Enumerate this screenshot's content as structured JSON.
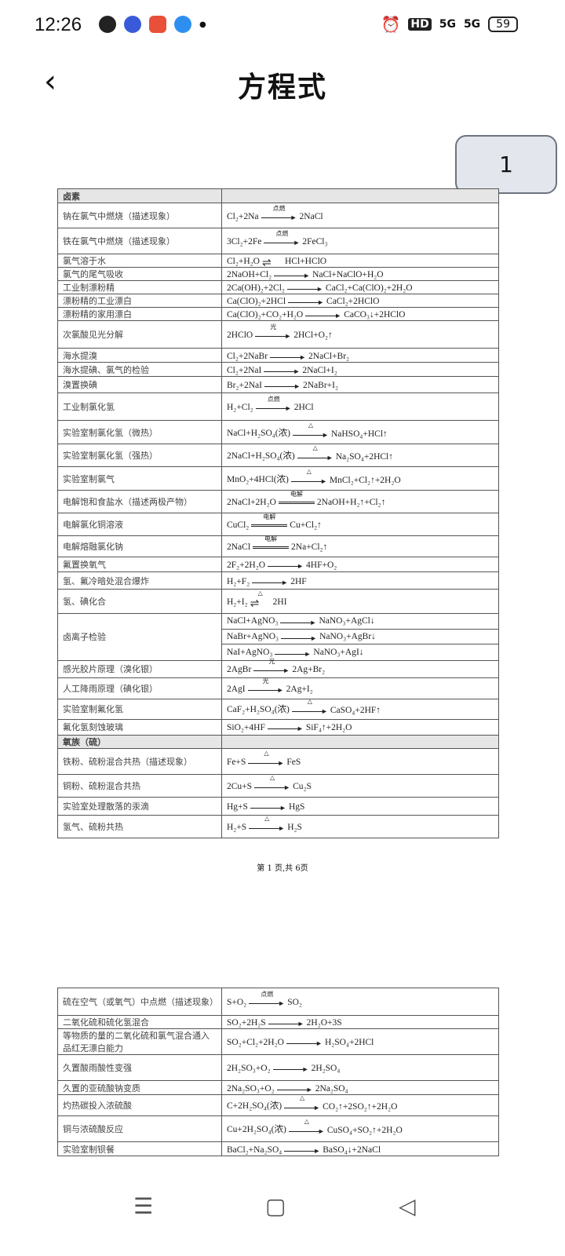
{
  "status": {
    "time": "12:26",
    "hd": "HD",
    "net1": "5G",
    "net2": "5G",
    "battery": "59"
  },
  "header": {
    "title": "方程式",
    "back_icon": "chevron-left-icon"
  },
  "page_badge": "1",
  "colors": {
    "section_bg": "#e6e6e6",
    "badge_bg": "#e3e7ed"
  },
  "page1": [
    {
      "sec": "卤素"
    },
    {
      "l": "钠在氯气中燃烧（描述现象）",
      "eq": [
        {
          "lhs": "Cl₂+2Na",
          "arrow": "single",
          "cond": "点燃",
          "rhs": "2NaCl"
        }
      ]
    },
    {
      "l": "铁在氯气中燃烧（描述现象）",
      "eq": [
        {
          "lhs": "3Cl₂+2Fe",
          "arrow": "single",
          "cond": "点燃",
          "rhs": "2FeCl₃"
        }
      ]
    },
    {
      "l": "氯气溶于水",
      "eq": [
        {
          "lhs": "Cl₂+H₂O",
          "arrow": "reversible",
          "cond": "",
          "rhs": "HCl+HClO"
        }
      ]
    },
    {
      "l": "氯气的尾气吸收",
      "eq": [
        {
          "lhs": "2NaOH+Cl₂",
          "arrow": "single",
          "cond": "",
          "rhs": "NaCl+NaClO+H₂O"
        }
      ]
    },
    {
      "l": "工业制漂粉精",
      "eq": [
        {
          "lhs": "2Ca(OH)₂+2Cl₂",
          "arrow": "single",
          "cond": "",
          "rhs": "CaCl₂+Ca(ClO)₂+2H₂O"
        }
      ]
    },
    {
      "l": "漂粉精的工业漂白",
      "eq": [
        {
          "lhs": "Ca(ClO)₂+2HCl",
          "arrow": "single",
          "cond": "",
          "rhs": "CaCl₂+2HClO"
        }
      ]
    },
    {
      "l": "漂粉精的家用漂白",
      "eq": [
        {
          "lhs": "Ca(ClO)₂+CO₂+H₂O",
          "arrow": "single",
          "cond": "",
          "rhs": "CaCO₃↓+2HClO"
        }
      ]
    },
    {
      "l": "次氯酸见光分解",
      "eq": [
        {
          "lhs": "2HClO",
          "arrow": "single",
          "cond": "光",
          "rhs": "2HCl+O₂↑"
        }
      ]
    },
    {
      "l": "海水提溴",
      "eq": [
        {
          "lhs": "Cl₂+2NaBr",
          "arrow": "single",
          "cond": "",
          "rhs": "2NaCl+Br₂"
        }
      ]
    },
    {
      "l": "海水提碘、氯气的检验",
      "eq": [
        {
          "lhs": "Cl₂+2NaI",
          "arrow": "single",
          "cond": "",
          "rhs": "2NaCl+I₂"
        }
      ]
    },
    {
      "l": "溴置换碘",
      "eq": [
        {
          "lhs": "Br₂+2NaI",
          "arrow": "single",
          "cond": "",
          "rhs": "2NaBr+I₂"
        }
      ]
    },
    {
      "l": "工业制氯化氢",
      "eq": [
        {
          "lhs": "H₂+Cl₂",
          "arrow": "single",
          "cond": "点燃",
          "rhs": "2HCl"
        }
      ]
    },
    {
      "l": "实验室制氯化氢（微热）",
      "eq": [
        {
          "lhs": "NaCl+H₂SO₄(浓)",
          "arrow": "single",
          "cond": "△",
          "rhs": "NaHSO₄+HCl↑"
        }
      ]
    },
    {
      "l": "实验室制氯化氢（强热）",
      "eq": [
        {
          "lhs": "2NaCl+H₂SO₄(浓)",
          "arrow": "single",
          "cond": "△",
          "rhs": "Na₂SO₄+2HCl↑"
        }
      ]
    },
    {
      "l": "实验室制氯气",
      "eq": [
        {
          "lhs": "MnO₂+4HCl(浓)",
          "arrow": "single",
          "cond": "△",
          "rhs": "MnCl₂+Cl₂↑+2H₂O"
        }
      ]
    },
    {
      "l": "电解饱和食盐水（描述两极产物）",
      "eq": [
        {
          "lhs": "2NaCl+2H₂O",
          "arrow": "equal",
          "cond": "电解",
          "rhs": "2NaOH+H₂↑+Cl₂↑"
        }
      ]
    },
    {
      "l": "电解氯化铜溶液",
      "eq": [
        {
          "lhs": "CuCl₂",
          "arrow": "equal",
          "cond": "电解",
          "rhs": "Cu+Cl₂↑"
        }
      ]
    },
    {
      "l": "电解熔融氯化钠",
      "eq": [
        {
          "lhs": "2NaCl",
          "arrow": "equal",
          "cond": "电解",
          "rhs": "2Na+Cl₂↑"
        }
      ]
    },
    {
      "l": "氟置换氧气",
      "eq": [
        {
          "lhs": "2F₂+2H₂O",
          "arrow": "single",
          "cond": "",
          "rhs": "4HF+O₂"
        }
      ]
    },
    {
      "l": "氢、氟冷暗处混合爆炸",
      "eq": [
        {
          "lhs": "H₂+F₂",
          "arrow": "single",
          "cond": "",
          "rhs": "2HF"
        }
      ]
    },
    {
      "l": "氢、碘化合",
      "eq": [
        {
          "lhs": "H₂+I₂",
          "arrow": "reversible",
          "cond": "△",
          "rhs": "2HI"
        }
      ]
    },
    {
      "l": "卤离子检验",
      "eq": [
        {
          "lhs": "NaCl+AgNO₃",
          "arrow": "single",
          "cond": "",
          "rhs": "NaNO₃+AgCl↓"
        },
        {
          "lhs": "NaBr+AgNO₃",
          "arrow": "single",
          "cond": "",
          "rhs": "NaNO₃+AgBr↓"
        },
        {
          "lhs": "NaI+AgNO₃",
          "arrow": "single",
          "cond": "",
          "rhs": "NaNO₃+AgI↓"
        }
      ]
    },
    {
      "l": "感光胶片原理（溴化银）",
      "eq": [
        {
          "lhs": "2AgBr",
          "arrow": "single",
          "cond": "光",
          "rhs": "2Ag+Br₂"
        }
      ]
    },
    {
      "l": "人工降雨原理（碘化银）",
      "eq": [
        {
          "lhs": "2AgI",
          "arrow": "single",
          "cond": "光",
          "rhs": "2Ag+I₂"
        }
      ]
    },
    {
      "l": "实验室制氟化氢",
      "eq": [
        {
          "lhs": "CaF₂+H₂SO₄(浓)",
          "arrow": "single",
          "cond": "△",
          "rhs": "CaSO₄+2HF↑"
        }
      ]
    },
    {
      "l": "氟化氢刻蚀玻璃",
      "eq": [
        {
          "lhs": "SiO₂+4HF",
          "arrow": "single",
          "cond": "",
          "rhs": "SiF₄↑+2H₂O"
        }
      ]
    },
    {
      "sec": "氧族（硫）"
    },
    {
      "l": "铁粉、硫粉混合共热（描述现象）",
      "eq": [
        {
          "lhs": "Fe+S",
          "arrow": "single",
          "cond": "△",
          "rhs": "FeS"
        }
      ]
    },
    {
      "l": "铜粉、硫粉混合共热",
      "eq": [
        {
          "lhs": "2Cu+S",
          "arrow": "single",
          "cond": "△",
          "rhs": "Cu₂S"
        }
      ]
    },
    {
      "l": "实验室处理散落的汞滴",
      "eq": [
        {
          "lhs": "Hg+S",
          "arrow": "single",
          "cond": "",
          "rhs": "HgS"
        }
      ]
    },
    {
      "l": "氢气、硫粉共热",
      "eq": [
        {
          "lhs": "H₂+S",
          "arrow": "single",
          "cond": "△",
          "rhs": "H₂S"
        }
      ]
    }
  ],
  "page1_footer": "第 1 页,共 6页",
  "page2": [
    {
      "l": "硫在空气（或氧气）中点燃（描述现象）",
      "eq": [
        {
          "lhs": "S+O₂",
          "arrow": "single",
          "cond": "点燃",
          "rhs": "SO₂"
        }
      ]
    },
    {
      "l": "二氧化硫和硫化氢混合",
      "eq": [
        {
          "lhs": "SO₂+2H₂S",
          "arrow": "single",
          "cond": "",
          "rhs": "2H₂O+3S"
        }
      ]
    },
    {
      "l": "等物质的量的二氧化硫和氯气混合通入品红无漂白能力",
      "eq": [
        {
          "lhs": "SO₂+Cl₂+2H₂O",
          "arrow": "single",
          "cond": "",
          "rhs": "H₂SO₄+2HCl"
        }
      ]
    },
    {
      "l": "久置酸雨酸性变强",
      "eq": [
        {
          "lhs": "2H₂SO₃+O₂",
          "arrow": "single",
          "cond": "",
          "rhs": "2H₂SO₄"
        }
      ]
    },
    {
      "l": "久置的亚硫酸钠变质",
      "eq": [
        {
          "lhs": "2Na₂SO₃+O₂",
          "arrow": "single",
          "cond": "",
          "rhs": "2Na₂SO₄"
        }
      ]
    },
    {
      "l": "灼热碳投入浓硫酸",
      "eq": [
        {
          "lhs": "C+2H₂SO₄(浓)",
          "arrow": "single",
          "cond": "△",
          "rhs": "CO₂↑+2SO₂↑+2H₂O"
        }
      ]
    },
    {
      "l": "铜与浓硫酸反应",
      "eq": [
        {
          "lhs": "Cu+2H₂SO₄(浓)",
          "arrow": "single",
          "cond": "△",
          "rhs": "CuSO₄+SO₂↑+2H₂O"
        }
      ]
    },
    {
      "l": "实验室制钡餐",
      "eq": [
        {
          "lhs": "BaCl₂+Na₂SO₄",
          "arrow": "single",
          "cond": "",
          "rhs": "BaSO₄↓+2NaCl"
        }
      ]
    }
  ],
  "nav": {
    "menu_icon": "menu-icon",
    "home_icon": "home-icon",
    "back_icon": "back-triangle-icon"
  }
}
